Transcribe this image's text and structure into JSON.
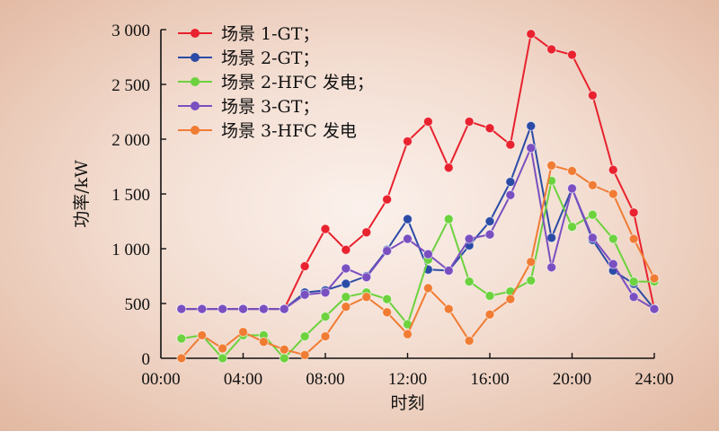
{
  "chart_data": {
    "type": "line",
    "title": "",
    "xlabel": "时刻",
    "ylabel": "功率/kW",
    "xlim": [
      0,
      24
    ],
    "ylim": [
      0,
      3000
    ],
    "x_ticks": [
      0,
      4,
      8,
      12,
      16,
      20,
      24
    ],
    "x_tick_labels": [
      "00:00",
      "04:00",
      "08:00",
      "12:00",
      "16:00",
      "20:00",
      "24:00"
    ],
    "y_ticks": [
      0,
      500,
      1000,
      1500,
      2000,
      2500,
      3000
    ],
    "y_tick_labels": [
      "0",
      "500",
      "1 000",
      "1 500",
      "2 000",
      "2 500",
      "3 000"
    ],
    "grid": false,
    "legend_position": "top-left",
    "x": [
      1,
      2,
      3,
      4,
      5,
      6,
      7,
      8,
      9,
      10,
      11,
      12,
      13,
      14,
      15,
      16,
      17,
      18,
      19,
      20,
      21,
      22,
      23,
      24
    ],
    "series": [
      {
        "name": "场景 1-GT；",
        "color": "#e8222e",
        "values": [
          450,
          450,
          450,
          450,
          450,
          450,
          840,
          1180,
          990,
          1150,
          1450,
          1980,
          2160,
          1740,
          2160,
          2100,
          1950,
          2960,
          2820,
          2770,
          2400,
          1720,
          1330,
          450
        ]
      },
      {
        "name": "场景 2-GT；",
        "color": "#2b4ba6",
        "values": [
          450,
          450,
          450,
          450,
          450,
          450,
          600,
          620,
          680,
          750,
          990,
          1270,
          810,
          800,
          1030,
          1250,
          1610,
          2120,
          1100,
          1550,
          1080,
          800,
          680,
          450
        ]
      },
      {
        "name": "场景 2-HFC 发电；",
        "color": "#6cd23e",
        "values": [
          180,
          210,
          0,
          210,
          210,
          0,
          200,
          380,
          560,
          600,
          540,
          310,
          900,
          1270,
          700,
          570,
          610,
          710,
          1620,
          1200,
          1310,
          1090,
          700,
          700
        ]
      },
      {
        "name": "场景 3-GT；",
        "color": "#7a4fc0",
        "values": [
          450,
          450,
          450,
          450,
          450,
          450,
          580,
          600,
          820,
          740,
          980,
          1090,
          950,
          800,
          1090,
          1130,
          1490,
          1920,
          830,
          1550,
          1100,
          860,
          560,
          450
        ]
      },
      {
        "name": "场景 3-HFC 发电",
        "color": "#f07c34",
        "values": [
          0,
          210,
          90,
          240,
          150,
          80,
          30,
          200,
          470,
          560,
          420,
          220,
          640,
          450,
          160,
          400,
          540,
          880,
          1760,
          1710,
          1580,
          1500,
          1090,
          730
        ]
      }
    ]
  }
}
